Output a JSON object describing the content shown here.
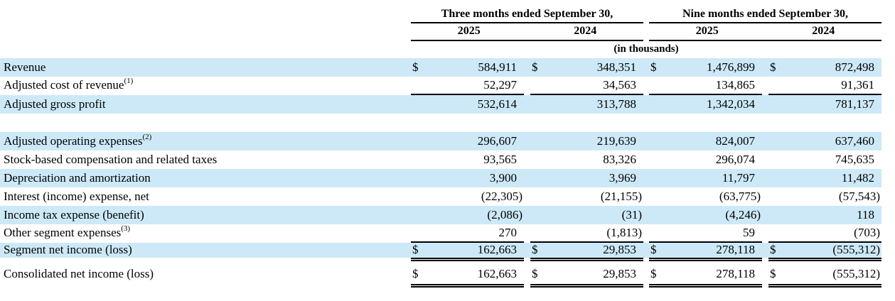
{
  "page": {
    "background_color": "#ffffff",
    "row_highlight_color": "#cde9f8",
    "rule_color": "#000000"
  },
  "table": {
    "currency_symbol": "$",
    "header": {
      "groups": [
        {
          "title": "Three months ended September 30,",
          "years": [
            "2025",
            "2024"
          ]
        },
        {
          "title": "Nine months ended September 30,",
          "years": [
            "2025",
            "2024"
          ]
        }
      ],
      "units_note": "(in thousands)"
    },
    "rows": [
      {
        "label": "Revenue",
        "dollar": true,
        "shaded": true,
        "values": [
          "584,911",
          "348,351",
          "1,476,899",
          "872,498"
        ]
      },
      {
        "label": "Adjusted cost of revenue",
        "sup": "(1)",
        "rule": "single",
        "values": [
          "52,297",
          "34,563",
          "134,865",
          "91,361"
        ]
      },
      {
        "label": "Adjusted gross profit",
        "shaded": true,
        "values": [
          "532,614",
          "313,788",
          "1,342,034",
          "781,137"
        ]
      },
      {
        "blank": true
      },
      {
        "label": "Adjusted operating expenses",
        "sup": "(2)",
        "shaded": true,
        "values": [
          "296,607",
          "219,639",
          "824,007",
          "637,460"
        ]
      },
      {
        "label": "Stock-based compensation and related taxes",
        "values": [
          "93,565",
          "83,326",
          "296,074",
          "745,635"
        ]
      },
      {
        "label": "Depreciation and amortization",
        "shaded": true,
        "values": [
          "3,900",
          "3,969",
          "11,797",
          "11,482"
        ]
      },
      {
        "label": "Interest (income) expense, net",
        "values": [
          "(22,305)",
          "(21,155)",
          "(63,775)",
          "(57,543)"
        ]
      },
      {
        "label": "Income tax expense (benefit)",
        "shaded": true,
        "values": [
          "(2,086)",
          "(31)",
          "(4,246)",
          "118"
        ]
      },
      {
        "label": "Other segment expenses",
        "sup": "(3)",
        "rule": "single",
        "values": [
          "270",
          "(1,813)",
          "59",
          "(703)"
        ]
      },
      {
        "label": "Segment net income (loss)",
        "dollar": true,
        "shaded": true,
        "rule": "double",
        "values": [
          "162,663",
          "29,853",
          "278,118",
          "(555,312)"
        ]
      },
      {
        "label": "Consolidated net income (loss)",
        "dollar": true,
        "rule": "double",
        "spacer_before": true,
        "values": [
          "162,663",
          "29,853",
          "278,118",
          "(555,312)"
        ]
      }
    ]
  }
}
